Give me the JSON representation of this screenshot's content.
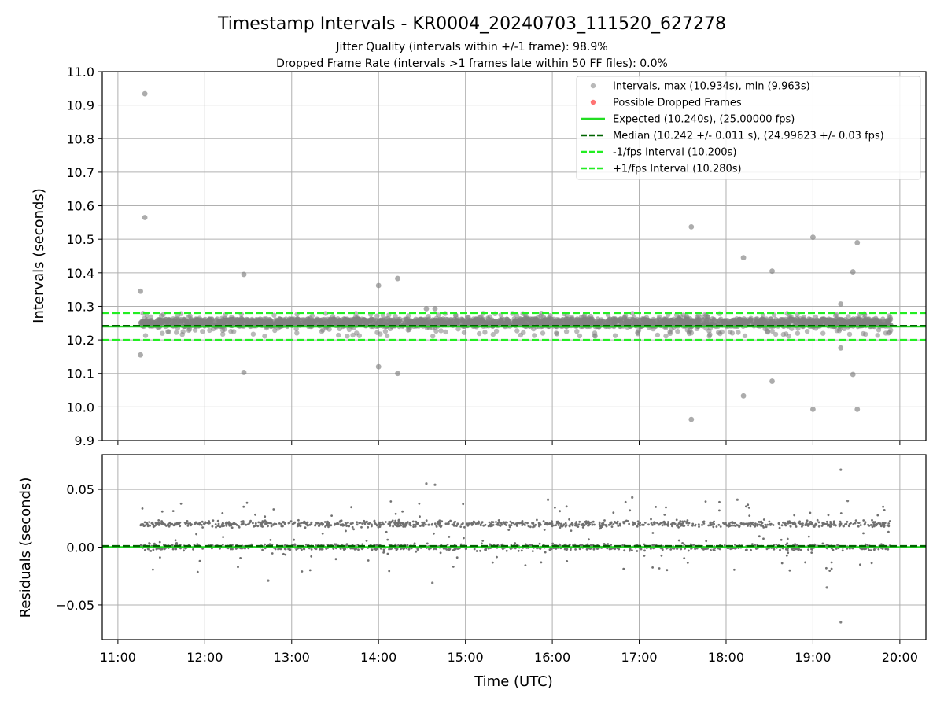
{
  "chart_data": {
    "type": "scatter",
    "title": "Timestamp Intervals - KR0004_20240703_111520_627278",
    "subtitle_lines": [
      "Jitter Quality (intervals within +/-1 frame): 98.9%",
      "Dropped Frame Rate (intervals >1 frames late within 50 FF files): 0.0%"
    ],
    "xlabel": "Time (UTC)",
    "x_ticks": [
      "11:00",
      "12:00",
      "13:00",
      "14:00",
      "15:00",
      "16:00",
      "17:00",
      "18:00",
      "19:00",
      "20:00"
    ],
    "x_range_hours": [
      10.82,
      20.3
    ],
    "x_data_range_hours": [
      11.26,
      19.9
    ],
    "grid": true,
    "panels": [
      {
        "name": "intervals",
        "ylabel": "Intervals (seconds)",
        "ylim": [
          9.9,
          11.0
        ],
        "y_ticks": [
          "9.9",
          "10.0",
          "10.1",
          "10.2",
          "10.3",
          "10.4",
          "10.5",
          "10.6",
          "10.7",
          "10.8",
          "10.9",
          "11.0"
        ],
        "legend_placement": "upper-right",
        "legend": [
          {
            "label": "Intervals, max (10.934s), min (9.963s)",
            "kind": "marker",
            "color": "#808080"
          },
          {
            "label": "Possible Dropped Frames",
            "kind": "marker",
            "color": "#ff0000"
          },
          {
            "label": "Expected (10.240s), (25.00000 fps)",
            "kind": "solid",
            "color": "#22dd22"
          },
          {
            "label": "Median (10.242 +/- 0.011 s), (24.99623 +/- 0.03 fps)",
            "kind": "dashed",
            "color": "#006400"
          },
          {
            "label": "-1/fps Interval (10.200s)",
            "kind": "dashed",
            "color": "#22ee22"
          },
          {
            "label": "+1/fps Interval (10.280s)",
            "kind": "dashed",
            "color": "#22ee22"
          }
        ],
        "lines": [
          {
            "name": "expected",
            "y": 10.24,
            "style": "solid",
            "color": "#22dd22"
          },
          {
            "name": "median",
            "y": 10.242,
            "style": "dashed",
            "color": "#006400"
          },
          {
            "name": "minus-1fps",
            "y": 10.2,
            "style": "dashed",
            "color": "#22ee22"
          },
          {
            "name": "plus-1fps",
            "y": 10.28,
            "style": "dashed",
            "color": "#22ee22"
          }
        ],
        "outliers": [
          {
            "x": 11.26,
            "y": 10.345
          },
          {
            "x": 11.26,
            "y": 10.155
          },
          {
            "x": 11.31,
            "y": 10.934
          },
          {
            "x": 11.31,
            "y": 10.565
          },
          {
            "x": 12.45,
            "y": 10.395
          },
          {
            "x": 12.45,
            "y": 10.103
          },
          {
            "x": 14.0,
            "y": 10.362
          },
          {
            "x": 14.0,
            "y": 10.12
          },
          {
            "x": 14.22,
            "y": 10.383
          },
          {
            "x": 14.22,
            "y": 10.1
          },
          {
            "x": 14.55,
            "y": 10.293
          },
          {
            "x": 14.65,
            "y": 10.293
          },
          {
            "x": 17.6,
            "y": 10.537
          },
          {
            "x": 17.6,
            "y": 9.963
          },
          {
            "x": 18.2,
            "y": 10.445
          },
          {
            "x": 18.2,
            "y": 10.033
          },
          {
            "x": 18.53,
            "y": 10.405
          },
          {
            "x": 18.53,
            "y": 10.077
          },
          {
            "x": 19.0,
            "y": 10.506
          },
          {
            "x": 19.0,
            "y": 9.993
          },
          {
            "x": 19.32,
            "y": 10.307
          },
          {
            "x": 19.32,
            "y": 10.176
          },
          {
            "x": 19.46,
            "y": 10.403
          },
          {
            "x": 19.46,
            "y": 10.097
          },
          {
            "x": 19.51,
            "y": 10.49
          },
          {
            "x": 19.51,
            "y": 9.993
          }
        ],
        "band": {
          "description": "dense cluster of intervals",
          "low": 10.24,
          "high": 10.263,
          "spread_low": 10.21,
          "spread_high": 10.28
        },
        "marker_color": "#808080"
      },
      {
        "name": "residuals",
        "ylabel": "Residuals (seconds)",
        "ylim": [
          -0.08,
          0.08
        ],
        "y_ticks": [
          "−0.05",
          "0.00",
          "0.05"
        ],
        "y_tick_values": [
          -0.05,
          0.0,
          0.05
        ],
        "lines": [
          {
            "name": "zero",
            "y": 0.0,
            "style": "solid",
            "color": "#22dd22"
          },
          {
            "name": "median-residual",
            "y": 0.001,
            "style": "dashed",
            "color": "#006400"
          }
        ],
        "bands": [
          {
            "center": 0.02,
            "spread": 0.004
          },
          {
            "center": 0.0,
            "spread": 0.004
          }
        ],
        "outliers": [
          {
            "x": 14.55,
            "y": 0.055
          },
          {
            "x": 14.65,
            "y": 0.054
          },
          {
            "x": 19.32,
            "y": 0.067
          },
          {
            "x": 19.32,
            "y": -0.065
          },
          {
            "x": 19.16,
            "y": -0.035
          },
          {
            "x": 15.95,
            "y": 0.041
          },
          {
            "x": 16.92,
            "y": 0.043
          },
          {
            "x": 18.13,
            "y": 0.041
          },
          {
            "x": 14.62,
            "y": -0.031
          },
          {
            "x": 12.73,
            "y": -0.029
          },
          {
            "x": 19.4,
            "y": 0.04
          }
        ],
        "marker_color": "#808080"
      }
    ]
  }
}
